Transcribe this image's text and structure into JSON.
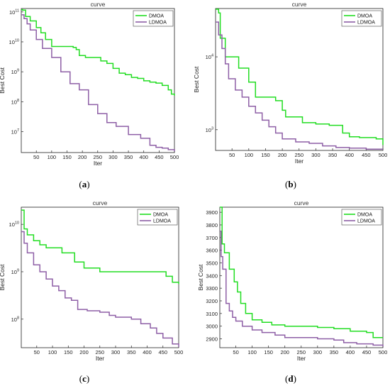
{
  "chart_data": [
    {
      "id": "a",
      "type": "line",
      "title": "curve",
      "xlabel": "Iter",
      "ylabel": "Best Cost",
      "panel_label": "a",
      "yscale": "log",
      "xlim": [
        1,
        500
      ],
      "ylim": [
        2000000,
        130000000000
      ],
      "xticks": [
        50,
        100,
        150,
        200,
        250,
        300,
        350,
        400,
        450,
        500
      ],
      "yticks": [
        {
          "v": 10000000,
          "b": "10",
          "e": "7"
        },
        {
          "v": 100000000,
          "b": "10",
          "e": "8"
        },
        {
          "v": 1000000000,
          "b": "10",
          "e": "9"
        },
        {
          "v": 10000000000,
          "b": "10",
          "e": "10"
        },
        {
          "v": 100000000000,
          "b": "10",
          "e": "11"
        }
      ],
      "legend_position": "top-right",
      "series": [
        {
          "name": "DMOA",
          "color": "#22dd22",
          "x": [
            1,
            5,
            15,
            30,
            50,
            65,
            80,
            100,
            170,
            180,
            190,
            210,
            240,
            260,
            280,
            300,
            320,
            340,
            360,
            380,
            400,
            420,
            440,
            460,
            480,
            490,
            500
          ],
          "y": [
            120000000000,
            115000000000,
            70000000000,
            50000000000,
            30000000000,
            20000000000,
            12000000000,
            7000000000,
            6500000000,
            5500000000,
            3500000000,
            3000000000,
            3000000000,
            2300000000,
            1900000000,
            1300000000,
            900000000,
            800000000,
            650000000,
            600000000,
            500000000,
            450000000,
            420000000,
            350000000,
            250000000,
            180000000,
            160000000
          ]
        },
        {
          "name": "LDMOA",
          "color": "#8e5fa6",
          "x": [
            1,
            10,
            20,
            30,
            50,
            70,
            100,
            130,
            160,
            190,
            220,
            250,
            280,
            310,
            350,
            390,
            420,
            440,
            460,
            480,
            500
          ],
          "y": [
            80000000000,
            60000000000,
            40000000000,
            25000000000,
            12000000000,
            6000000000,
            3000000000,
            1000000000,
            400000000,
            250000000,
            80000000,
            40000000,
            20000000,
            15000000,
            8000000,
            6000000,
            3500000,
            3000000,
            2800000,
            2500000,
            2200000
          ]
        }
      ]
    },
    {
      "id": "b",
      "type": "line",
      "title": "curve",
      "xlabel": "Iter",
      "ylabel": "Best Cost",
      "panel_label": "b",
      "yscale": "log",
      "xlim": [
        1,
        500
      ],
      "ylim": [
        520,
        46000
      ],
      "xticks": [
        50,
        100,
        150,
        200,
        250,
        300,
        350,
        400,
        450,
        500
      ],
      "yticks": [
        {
          "v": 1000,
          "b": "10",
          "e": "3"
        },
        {
          "v": 10000,
          "b": "10",
          "e": "4"
        }
      ],
      "legend_position": "top-right",
      "series": [
        {
          "name": "DMOA",
          "color": "#22dd22",
          "x": [
            1,
            10,
            15,
            30,
            70,
            100,
            120,
            180,
            200,
            210,
            260,
            300,
            330,
            340,
            380,
            400,
            430,
            480,
            500
          ],
          "y": [
            45000,
            40000,
            18000,
            10000,
            7000,
            4500,
            2800,
            2500,
            1850,
            1500,
            1250,
            1200,
            1200,
            1150,
            900,
            800,
            780,
            750,
            620
          ]
        },
        {
          "name": "LDMOA",
          "color": "#8e5fa6",
          "x": [
            1,
            10,
            20,
            30,
            40,
            60,
            80,
            100,
            120,
            140,
            160,
            180,
            200,
            240,
            280,
            320,
            360,
            400,
            450,
            500
          ],
          "y": [
            30000,
            20000,
            13000,
            8000,
            5000,
            3500,
            2800,
            2100,
            1700,
            1350,
            1100,
            900,
            750,
            680,
            650,
            600,
            570,
            560,
            540,
            540
          ]
        }
      ]
    },
    {
      "id": "c",
      "type": "line",
      "title": "curve",
      "xlabel": "Iter",
      "ylabel": "Best Cost",
      "panel_label": "c",
      "yscale": "log",
      "xlim": [
        1,
        500
      ],
      "ylim": [
        25000000,
        23000000000
      ],
      "xticks": [
        50,
        100,
        150,
        200,
        250,
        300,
        350,
        400,
        450,
        500
      ],
      "yticks": [
        {
          "v": 100000000,
          "b": "10",
          "e": "8"
        },
        {
          "v": 1000000000,
          "b": "10",
          "e": "9"
        },
        {
          "v": 10000000000,
          "b": "10",
          "e": "10"
        }
      ],
      "legend_position": "top-right",
      "series": [
        {
          "name": "DMOA",
          "color": "#22dd22",
          "x": [
            1,
            10,
            20,
            40,
            60,
            80,
            130,
            170,
            200,
            250,
            300,
            350,
            400,
            460,
            480,
            500
          ],
          "y": [
            20000000000,
            8000000000,
            6000000000,
            4500000000,
            3700000000,
            3200000000,
            2500000000,
            1600000000,
            1200000000,
            1000000000,
            1000000000,
            1000000000,
            1000000000,
            800000000,
            600000000,
            550000000
          ]
        },
        {
          "name": "LDMOA",
          "color": "#8e5fa6",
          "x": [
            1,
            10,
            20,
            40,
            60,
            80,
            100,
            120,
            140,
            160,
            180,
            210,
            250,
            280,
            300,
            350,
            380,
            410,
            430,
            450,
            480,
            500
          ],
          "y": [
            7000000000,
            4000000000,
            2500000000,
            1400000000,
            1000000000,
            700000000,
            500000000,
            400000000,
            280000000,
            250000000,
            160000000,
            150000000,
            140000000,
            120000000,
            110000000,
            100000000,
            80000000,
            65000000,
            50000000,
            40000000,
            30000000,
            26000000
          ]
        }
      ]
    },
    {
      "id": "d",
      "type": "line",
      "title": "curve",
      "xlabel": "Iter",
      "ylabel": "Best Cost",
      "panel_label": "d",
      "yscale": "linear",
      "xlim": [
        1,
        500
      ],
      "ylim": [
        2830,
        3940
      ],
      "xticks": [
        50,
        100,
        150,
        200,
        250,
        300,
        350,
        400,
        450,
        500
      ],
      "yticks": [
        {
          "v": 2900,
          "t": "2900"
        },
        {
          "v": 3000,
          "t": "3000"
        },
        {
          "v": 3100,
          "t": "3100"
        },
        {
          "v": 3200,
          "t": "3200"
        },
        {
          "v": 3300,
          "t": "3300"
        },
        {
          "v": 3400,
          "t": "3400"
        },
        {
          "v": 3500,
          "t": "3500"
        },
        {
          "v": 3600,
          "t": "3600"
        },
        {
          "v": 3700,
          "t": "3700"
        },
        {
          "v": 3800,
          "t": "3800"
        },
        {
          "v": 3900,
          "t": "3900"
        }
      ],
      "legend_position": "top-right",
      "series": [
        {
          "name": "DMOA",
          "color": "#22dd22",
          "x": [
            1,
            8,
            15,
            30,
            45,
            55,
            65,
            80,
            100,
            130,
            160,
            200,
            250,
            300,
            350,
            400,
            450,
            470,
            500
          ],
          "y": [
            3940,
            3650,
            3580,
            3450,
            3350,
            3270,
            3180,
            3100,
            3050,
            3030,
            3010,
            3000,
            3000,
            2990,
            2980,
            2960,
            2950,
            2910,
            2910
          ]
        },
        {
          "name": "LDMOA",
          "color": "#8e5fa6",
          "x": [
            1,
            5,
            10,
            20,
            30,
            40,
            50,
            70,
            100,
            130,
            170,
            200,
            250,
            300,
            350,
            380,
            420,
            450,
            470,
            500
          ],
          "y": [
            3750,
            3550,
            3450,
            3180,
            3120,
            3070,
            3040,
            3000,
            2970,
            2950,
            2930,
            2910,
            2910,
            2900,
            2890,
            2870,
            2860,
            2860,
            2850,
            2840
          ]
        }
      ]
    }
  ]
}
